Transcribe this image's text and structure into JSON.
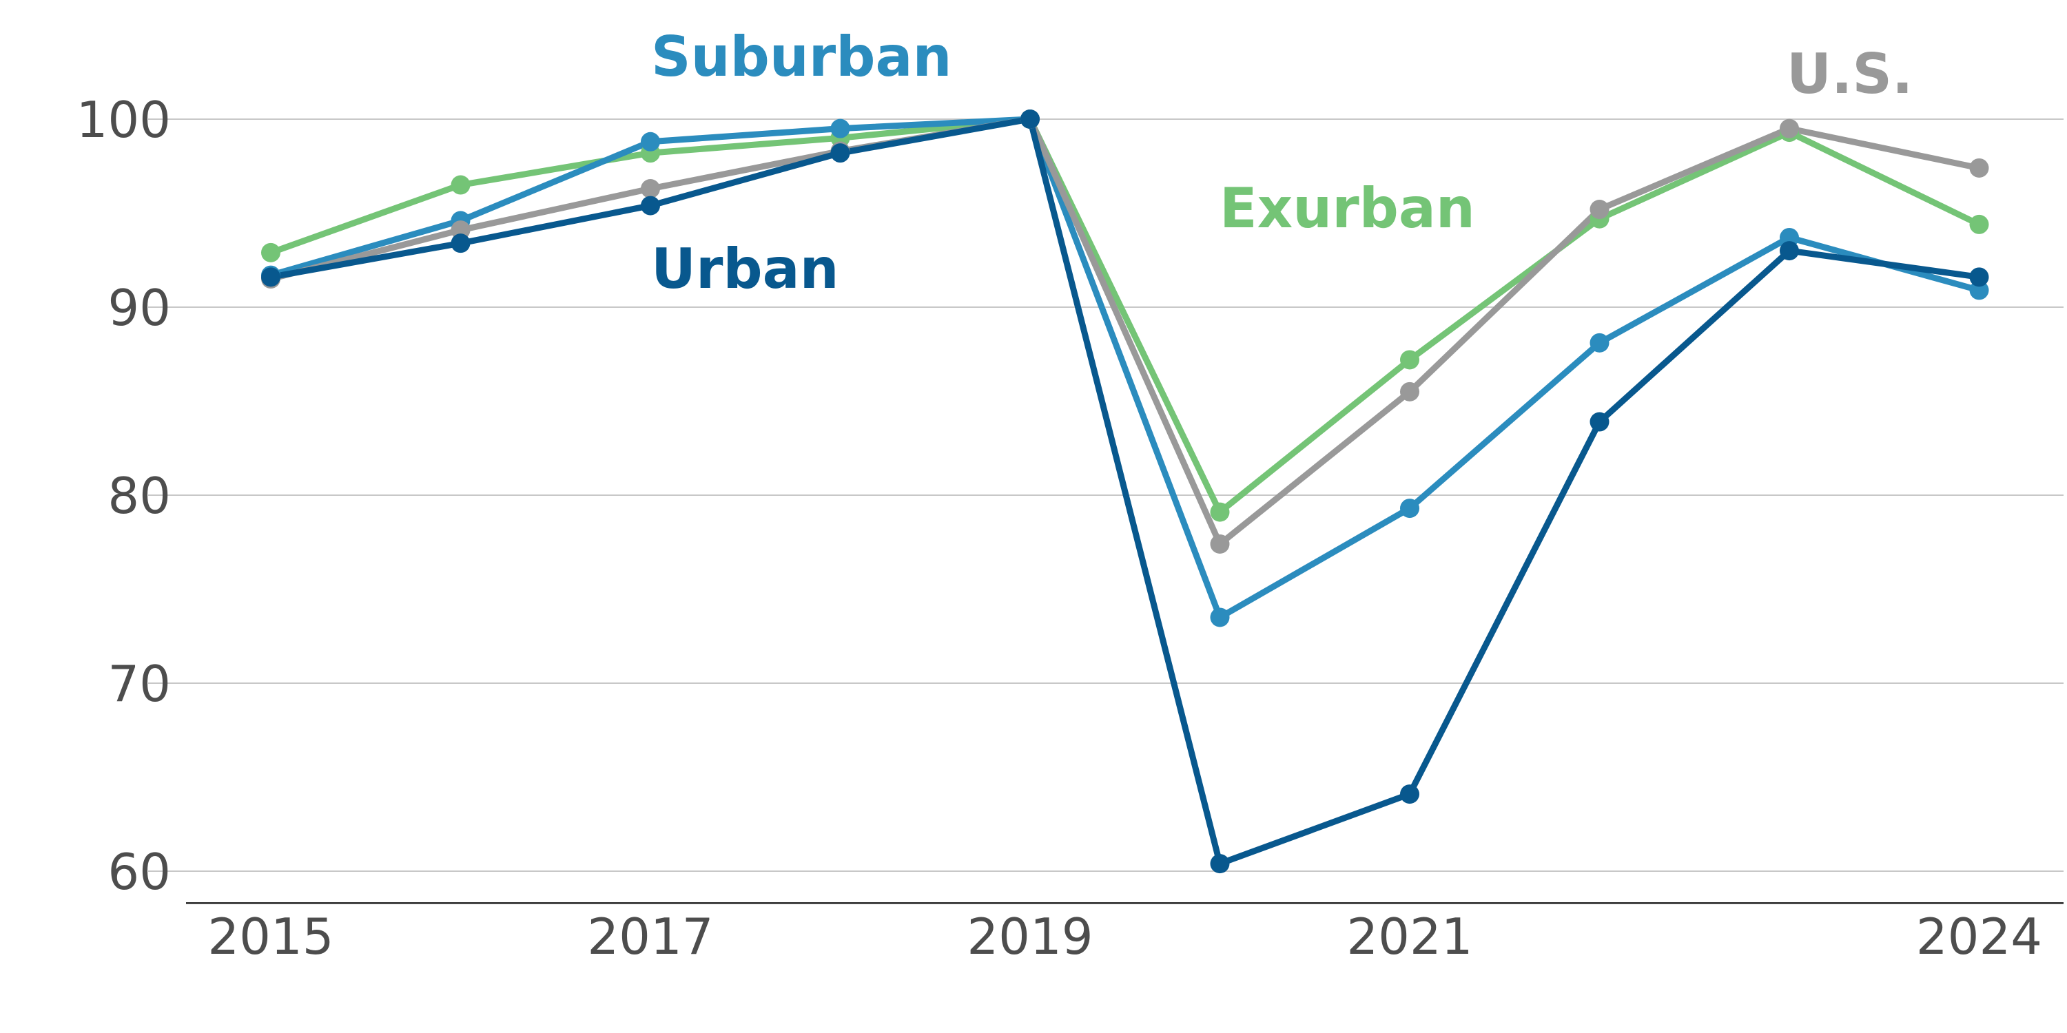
{
  "chart_data": {
    "type": "line",
    "title": "",
    "xlabel": "",
    "ylabel": "",
    "x": [
      2015,
      2016,
      2017,
      2018,
      2019,
      2020,
      2021,
      2022,
      2023,
      2024
    ],
    "x_tick_labels": [
      "2015",
      "2017",
      "2019",
      "2021",
      "2024"
    ],
    "x_tick_values": [
      2015,
      2017,
      2019,
      2021,
      2024
    ],
    "ylim": [
      58.3,
      104
    ],
    "y_ticks": [
      60,
      70,
      80,
      90,
      100
    ],
    "y_tick_labels": [
      "60",
      "70",
      "80",
      "90",
      "100"
    ],
    "grid": "horizontal",
    "legend": "none (direct labels)",
    "series": [
      {
        "name": "Exurban",
        "color": "#74c476",
        "values": [
          92.9,
          96.5,
          98.2,
          99.0,
          100.0,
          79.1,
          87.2,
          94.7,
          99.3,
          94.4
        ]
      },
      {
        "name": "Suburban",
        "color": "#2b8cbe",
        "values": [
          91.7,
          94.6,
          98.8,
          99.5,
          100.0,
          73.5,
          79.3,
          88.1,
          93.7,
          90.9
        ]
      },
      {
        "name": "U.S.",
        "color": "#999999",
        "values": [
          91.5,
          94.1,
          96.3,
          98.3,
          100.0,
          77.4,
          85.5,
          95.2,
          99.5,
          97.4
        ]
      },
      {
        "name": "Urban",
        "color": "#08588e",
        "values": [
          91.6,
          93.4,
          95.4,
          98.2,
          100.0,
          60.4,
          64.1,
          83.9,
          93.0,
          91.6
        ]
      }
    ]
  }
}
